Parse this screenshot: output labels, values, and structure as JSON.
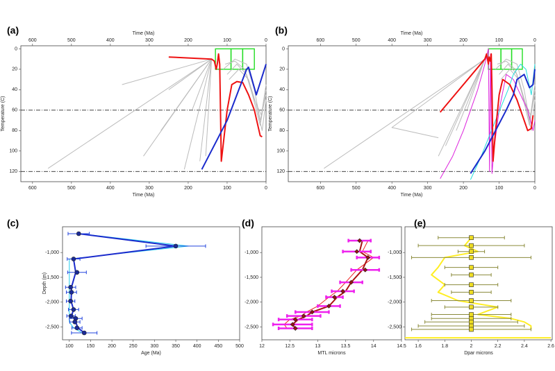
{
  "chart_data": [
    {
      "type": "line",
      "label": "(a)",
      "xlabel": "Time (Ma)",
      "ylabel": "Temperature (C)",
      "top_axis": true,
      "xlim": [
        630,
        0
      ],
      "ylim": [
        -3,
        130
      ],
      "xticks": [
        600,
        500,
        400,
        300,
        200,
        100,
        0
      ],
      "yticks": [
        0,
        20,
        40,
        60,
        80,
        100,
        120
      ],
      "hlines": [
        60,
        120
      ],
      "boxes": [
        {
          "x": [
            130,
            90
          ],
          "y": [
            0,
            20
          ],
          "color": "#22dd22"
        },
        {
          "x": [
            90,
            60
          ],
          "y": [
            0,
            20
          ],
          "color": "#22dd22"
        },
        {
          "x": [
            60,
            30
          ],
          "y": [
            0,
            20
          ],
          "color": "#22dd22"
        }
      ],
      "series": [
        {
          "color": "#bbbbbb",
          "x": [
            140,
            560
          ],
          "values": [
            10,
            117
          ]
        },
        {
          "color": "#bbbbbb",
          "x": [
            140,
            315
          ],
          "values": [
            10,
            105
          ]
        },
        {
          "color": "#bbbbbb",
          "x": [
            140,
            270
          ],
          "values": [
            10,
            80
          ]
        },
        {
          "color": "#bbbbbb",
          "x": [
            140,
            210
          ],
          "values": [
            10,
            118
          ]
        },
        {
          "color": "#bbbbbb",
          "x": [
            140,
            250
          ],
          "values": [
            10,
            40
          ]
        },
        {
          "color": "#bbbbbb",
          "x": [
            140,
            370
          ],
          "values": [
            10,
            35
          ]
        },
        {
          "color": "#bbbbbb",
          "x": [
            140,
            190
          ],
          "values": [
            10,
            60
          ]
        },
        {
          "color": "#bbbbbb",
          "x": [
            140,
            170
          ],
          "values": [
            10,
            110
          ]
        },
        {
          "color": "#bbbbbb",
          "x": [
            140,
            155
          ],
          "values": [
            10,
            105
          ]
        },
        {
          "color": "#bbbbbb",
          "x": [
            110,
            80,
            50,
            30,
            15,
            0
          ],
          "values": [
            20,
            10,
            15,
            40,
            70,
            45
          ]
        },
        {
          "color": "#bbbbbb",
          "x": [
            105,
            80,
            55,
            35,
            15,
            0
          ],
          "values": [
            15,
            12,
            20,
            45,
            75,
            40
          ]
        },
        {
          "color": "#bbbbbb",
          "x": [
            100,
            75,
            50,
            30,
            12,
            0
          ],
          "values": [
            25,
            15,
            25,
            50,
            65,
            35
          ]
        },
        {
          "color": "#bbbbbb",
          "x": [
            95,
            70,
            45,
            25,
            10,
            0
          ],
          "values": [
            30,
            20,
            30,
            55,
            80,
            50
          ]
        },
        {
          "color": "#ee1111",
          "x": [
            250,
            140,
            133,
            128,
            125,
            122,
            119,
            117,
            115,
            100,
            88,
            75,
            60,
            45,
            30,
            15,
            10
          ],
          "values": [
            8,
            10,
            12,
            20,
            14,
            5,
            15,
            60,
            110,
            60,
            35,
            32,
            33,
            45,
            60,
            85,
            86
          ]
        },
        {
          "color": "#1a2acc",
          "x": [
            165,
            100,
            50,
            45,
            25,
            0
          ],
          "values": [
            118,
            70,
            20,
            18,
            45,
            15
          ]
        }
      ]
    },
    {
      "type": "line",
      "label": "(b)",
      "xlabel": "Time (Ma)",
      "ylabel": "Temperature (C)",
      "top_axis": true,
      "xlim": [
        690,
        0
      ],
      "ylim": [
        -3,
        130
      ],
      "xticks": [
        600,
        500,
        400,
        300,
        200,
        100,
        0
      ],
      "yticks": [
        0,
        20,
        40,
        60,
        80,
        100,
        120
      ],
      "hlines": [
        60,
        120
      ],
      "boxes": [
        {
          "x": [
            130,
            95
          ],
          "y": [
            0,
            20
          ],
          "color": "#22dd22"
        },
        {
          "x": [
            95,
            65
          ],
          "y": [
            0,
            20
          ],
          "color": "#22dd22"
        },
        {
          "x": [
            65,
            35
          ],
          "y": [
            0,
            20
          ],
          "color": "#22dd22"
        }
      ],
      "series": [
        {
          "color": "#bbbbbb",
          "x": [
            140,
            590
          ],
          "values": [
            10,
            117
          ]
        },
        {
          "color": "#bbbbbb",
          "x": [
            140,
            400,
            270
          ],
          "values": [
            10,
            77,
            87
          ]
        },
        {
          "color": "#bbbbbb",
          "x": [
            140,
            270
          ],
          "values": [
            10,
            105
          ]
        },
        {
          "color": "#bbbbbb",
          "x": [
            140,
            250
          ],
          "values": [
            10,
            95
          ]
        },
        {
          "color": "#bbbbbb",
          "x": [
            140,
            220
          ],
          "values": [
            10,
            80
          ]
        },
        {
          "color": "#bbbbbb",
          "x": [
            140,
            190
          ],
          "values": [
            10,
            60
          ]
        },
        {
          "color": "#bbbbbb",
          "x": [
            110,
            80,
            50,
            30,
            15,
            0
          ],
          "values": [
            20,
            10,
            15,
            40,
            70,
            45
          ]
        },
        {
          "color": "#bbbbbb",
          "x": [
            105,
            80,
            55,
            35,
            15,
            0
          ],
          "values": [
            15,
            12,
            20,
            45,
            75,
            40
          ]
        },
        {
          "color": "#bbbbbb",
          "x": [
            100,
            75,
            50,
            30,
            12,
            0
          ],
          "values": [
            25,
            15,
            25,
            50,
            65,
            35
          ]
        },
        {
          "color": "#bbbbbb",
          "x": [
            95,
            70,
            45,
            25,
            10,
            0
          ],
          "values": [
            30,
            20,
            30,
            55,
            80,
            50
          ]
        },
        {
          "color": "#dd22dd",
          "x": [
            265,
            230,
            200,
            160,
            140,
            130,
            127,
            124,
            120,
            115,
            100,
            80,
            60,
            40,
            20,
            5,
            0
          ],
          "values": [
            127,
            105,
            80,
            40,
            15,
            0,
            120,
            5,
            122,
            100,
            60,
            25,
            30,
            45,
            60,
            80,
            70
          ]
        },
        {
          "color": "#22dddd",
          "x": [
            180,
            150,
            110,
            75,
            60,
            40,
            25,
            10,
            0
          ],
          "values": [
            128,
            105,
            70,
            40,
            25,
            15,
            20,
            45,
            15
          ]
        },
        {
          "color": "#ee1111",
          "x": [
            265,
            140,
            135,
            130,
            128,
            125,
            122,
            120,
            117,
            110,
            100,
            90,
            70,
            50,
            35,
            20,
            10,
            5
          ],
          "values": [
            62,
            10,
            5,
            15,
            8,
            12,
            5,
            40,
            110,
            80,
            45,
            30,
            35,
            50,
            65,
            80,
            78,
            65
          ]
        },
        {
          "color": "#1a2acc",
          "x": [
            180,
            140,
            110,
            80,
            60,
            50,
            30,
            15,
            5,
            0
          ],
          "values": [
            122,
            100,
            80,
            60,
            45,
            30,
            25,
            38,
            35,
            20
          ]
        }
      ]
    },
    {
      "type": "scatter",
      "label": "(c)",
      "xlabel": "Age (Ma)",
      "ylabel": "Depth (m)",
      "xlim": [
        84,
        500
      ],
      "ylim": [
        -480,
        -2760
      ],
      "xticks": [
        100,
        150,
        200,
        250,
        300,
        350,
        400,
        450,
        500
      ],
      "yticks": [
        {
          "value": -1000,
          "label": "-1,000"
        },
        {
          "value": -1500,
          "label": "-1,500"
        },
        {
          "value": -2000,
          "label": "-2,000"
        },
        {
          "value": -2500,
          "label": "-2,500"
        }
      ],
      "series": [
        {
          "color": "#22ccee",
          "x": [
            125,
            380,
            100,
            100,
            100,
            100,
            100,
            100,
            100,
            100,
            100,
            110,
            130
          ],
          "values": [
            -620,
            -870,
            -1130,
            -1400,
            -1700,
            -1800,
            -1980,
            -2150,
            -2280,
            -2330,
            -2400,
            -2520,
            -2620
          ]
        },
        {
          "color": "#1a2acc",
          "x": [
            122,
            350,
            110,
            115,
            105,
            105,
            104,
            110,
            105,
            113,
            115,
            120,
            135
          ],
          "values": [
            -620,
            -870,
            -1130,
            -1400,
            -1700,
            -1800,
            -1980,
            -2150,
            -2280,
            -2330,
            -2400,
            -2520,
            -2620
          ]
        },
        {
          "color": "#1a2a99",
          "marker": "circle",
          "error_color": "#2244dd",
          "x": [
            122,
            350,
            110,
            118,
            103,
            105,
            103,
            110,
            104,
            115,
            113,
            118,
            135
          ],
          "values": [
            -620,
            -870,
            -1130,
            -1400,
            -1700,
            -1800,
            -1980,
            -2150,
            -2280,
            -2330,
            -2400,
            -2520,
            -2620
          ],
          "x_errors": [
            25,
            70,
            15,
            22,
            12,
            12,
            10,
            12,
            10,
            15,
            12,
            12,
            30
          ]
        }
      ]
    },
    {
      "type": "scatter",
      "label": "(d)",
      "xlabel": "MTL microns",
      "xlim": [
        12,
        14.5
      ],
      "ylim": [
        -480,
        -2760
      ],
      "xticks": [
        12,
        12.5,
        13,
        13.5,
        14,
        14.5
      ],
      "yticks": [
        {
          "value": -1000,
          "label": "-1,000"
        },
        {
          "value": -1500,
          "label": "-1,500"
        },
        {
          "value": -2000,
          "label": "-2,000"
        },
        {
          "value": -2500,
          "label": "-2,500"
        }
      ],
      "series": [
        {
          "color": "#ee2222",
          "x": [
            13.9,
            13.8,
            14.0,
            13.7,
            13.5,
            13.35,
            13.2,
            13.0,
            12.8,
            12.7,
            12.5,
            12.4,
            12.45
          ],
          "values": [
            -760,
            -980,
            -1100,
            -1350,
            -1600,
            -1780,
            -1900,
            -2080,
            -2200,
            -2280,
            -2350,
            -2450,
            -2530
          ]
        },
        {
          "color": "#aa1111",
          "x": [
            13.8,
            13.75,
            13.9,
            13.8,
            13.6,
            13.5,
            13.35,
            13.2,
            12.9,
            12.8,
            12.65,
            12.55,
            12.6
          ],
          "values": [
            -760,
            -980,
            -1100,
            -1350,
            -1600,
            -1780,
            -1900,
            -2080,
            -2200,
            -2280,
            -2350,
            -2450,
            -2530
          ]
        },
        {
          "color": "#991111",
          "marker": "diamond",
          "error_color": "#ee22ee",
          "x": [
            13.75,
            13.7,
            13.9,
            13.85,
            13.6,
            13.45,
            13.3,
            13.2,
            12.9,
            12.75,
            12.6,
            12.55,
            12.6
          ],
          "values": [
            -760,
            -980,
            -1100,
            -1350,
            -1600,
            -1780,
            -1900,
            -2080,
            -2200,
            -2280,
            -2350,
            -2450,
            -2530
          ],
          "x_errors": [
            0.2,
            0.25,
            0.2,
            0.25,
            0.2,
            0.2,
            0.15,
            0.2,
            0.3,
            0.3,
            0.3,
            0.35,
            0.3
          ]
        }
      ]
    },
    {
      "type": "scatter",
      "label": "(e)",
      "xlabel": "Dpar microns",
      "xlim": [
        1.5,
        2.61
      ],
      "ylim": [
        -480,
        -2760
      ],
      "xticks": [
        1.6,
        1.8,
        2,
        2.2,
        2.4,
        2.6
      ],
      "yticks": [
        {
          "value": -1000,
          "label": "-1,000"
        },
        {
          "value": -1500,
          "label": "-1,500"
        },
        {
          "value": -2000,
          "label": "-2,000"
        },
        {
          "value": -2500,
          "label": "-2,500"
        }
      ],
      "series": [
        {
          "color": "#ffee22",
          "x": [
            1.5,
            2.6
          ],
          "values": [
            -2720,
            -2720
          ]
        },
        {
          "color": "#ffee22",
          "x": [
            2.0,
            1.95,
            2.05,
            1.8,
            1.75,
            1.7,
            1.8,
            1.75,
            1.9,
            2.2,
            2.05,
            2.3,
            2.4,
            2.45,
            2.45
          ],
          "values": [
            -700,
            -860,
            -980,
            -1100,
            -1300,
            -1450,
            -1650,
            -1800,
            -1970,
            -2100,
            -2250,
            -2330,
            -2400,
            -2480,
            -2550
          ]
        },
        {
          "color": "#eedd22",
          "marker": "square",
          "error_color": "#8a8a3a",
          "x": [
            2,
            2,
            2,
            2,
            2,
            2,
            2,
            2,
            2,
            2,
            2,
            2,
            2,
            2,
            2
          ],
          "values": [
            -700,
            -860,
            -980,
            -1100,
            -1300,
            -1450,
            -1650,
            -1800,
            -1970,
            -2100,
            -2250,
            -2330,
            -2400,
            -2480,
            -2550
          ],
          "x_errors": [
            0.25,
            0.4,
            0.1,
            0.45,
            0.2,
            0.15,
            0.2,
            0.15,
            0.3,
            0.2,
            0.3,
            0.3,
            0.35,
            0.4,
            0.45
          ]
        }
      ]
    }
  ]
}
